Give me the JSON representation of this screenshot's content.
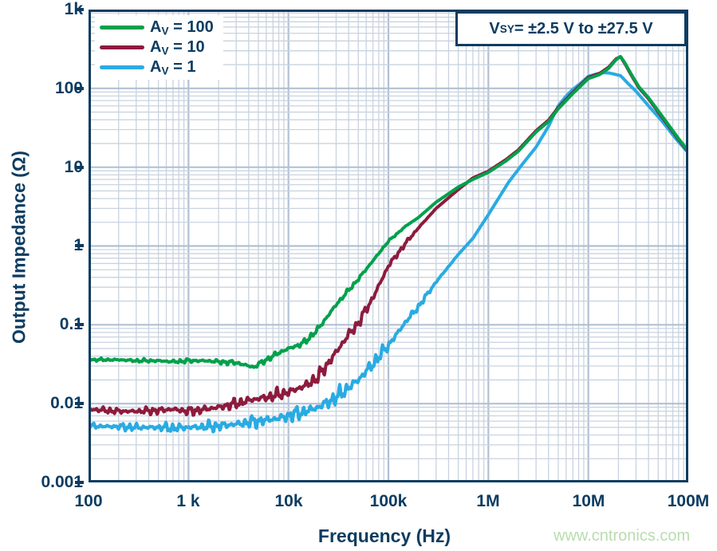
{
  "watermark": "www.cntronics.com",
  "chart_data": {
    "type": "line",
    "title": "",
    "xlabel": "Frequency (Hz)",
    "ylabel": "Output Impedance (Ω)",
    "x_scale": "log",
    "y_scale": "log",
    "xlim": [
      100,
      100000000
    ],
    "ylim": [
      0.001,
      1000
    ],
    "grid": "log minor + major gridlines, both axes",
    "legend_position": "top-left",
    "annotation": {
      "base": "V",
      "sub": "SY",
      "rest": " = ±2.5 V to ±27.5 V"
    },
    "xticks": [
      {
        "value": 100,
        "label": "100"
      },
      {
        "value": 1000,
        "label": "1 k"
      },
      {
        "value": 10000,
        "label": "10k"
      },
      {
        "value": 100000,
        "label": "100k"
      },
      {
        "value": 1000000,
        "label": "1M"
      },
      {
        "value": 10000000,
        "label": "10M"
      },
      {
        "value": 100000000,
        "label": "100M"
      }
    ],
    "yticks": [
      {
        "value": 1000,
        "label": "1k"
      },
      {
        "value": 100,
        "label": "100"
      },
      {
        "value": 10,
        "label": "10"
      },
      {
        "value": 1,
        "label": "1"
      },
      {
        "value": 0.1,
        "label": "0.1"
      },
      {
        "value": 0.01,
        "label": "0.01"
      },
      {
        "value": 0.001,
        "label": "0.001"
      }
    ],
    "colors": {
      "axis": "#0d3c61",
      "grid_minor": "#c9d3df",
      "grid_major": "#b2c0d2",
      "watermark": "#b9dcae"
    },
    "series": [
      {
        "name": "AV = 100",
        "legend": {
          "base": "A",
          "sub": "V",
          "rest": " = 100"
        },
        "color": "#00a14b",
        "noise": {
          "amp_log": 0.04,
          "fade_start_hz": 20000,
          "fade_end_hz": 200000,
          "seed": 5
        },
        "points": [
          [
            100,
            0.036
          ],
          [
            200,
            0.036
          ],
          [
            300,
            0.035
          ],
          [
            500,
            0.035
          ],
          [
            700,
            0.034
          ],
          [
            1000,
            0.035
          ],
          [
            1500,
            0.035
          ],
          [
            2000,
            0.034
          ],
          [
            3000,
            0.033
          ],
          [
            4500,
            0.029
          ],
          [
            6000,
            0.036
          ],
          [
            8000,
            0.044
          ],
          [
            10000,
            0.05
          ],
          [
            13000,
            0.056
          ],
          [
            15000,
            0.062
          ],
          [
            20000,
            0.09
          ],
          [
            30000,
            0.18
          ],
          [
            50000,
            0.38
          ],
          [
            70000,
            0.65
          ],
          [
            100000,
            1.15
          ],
          [
            150000,
            1.8
          ],
          [
            200000,
            2.3
          ],
          [
            300000,
            3.6
          ],
          [
            500000,
            5.6
          ],
          [
            700000,
            7.0
          ],
          [
            1000000,
            8.6
          ],
          [
            1500000,
            12
          ],
          [
            2000000,
            16
          ],
          [
            3000000,
            28
          ],
          [
            4000000,
            38
          ],
          [
            5000000,
            55
          ],
          [
            7000000,
            86
          ],
          [
            10000000,
            133
          ],
          [
            13000000,
            150
          ],
          [
            16000000,
            180
          ],
          [
            19000000,
            232
          ],
          [
            21000000,
            255
          ],
          [
            23500000,
            205
          ],
          [
            27000000,
            150
          ],
          [
            32000000,
            105
          ],
          [
            40000000,
            76
          ],
          [
            50000000,
            52
          ],
          [
            65000000,
            33
          ],
          [
            80000000,
            23
          ],
          [
            100000000,
            16
          ]
        ]
      },
      {
        "name": "AV = 10",
        "legend": {
          "base": "A",
          "sub": "V",
          "rest": " = 10"
        },
        "color": "#8d1b3d",
        "noise": {
          "amp_log": 0.085,
          "fade_start_hz": 30000,
          "fade_end_hz": 300000,
          "seed": 11
        },
        "points": [
          [
            100,
            0.0085
          ],
          [
            200,
            0.008
          ],
          [
            300,
            0.008
          ],
          [
            500,
            0.0082
          ],
          [
            700,
            0.0085
          ],
          [
            1000,
            0.008
          ],
          [
            1500,
            0.0085
          ],
          [
            2000,
            0.009
          ],
          [
            3000,
            0.01
          ],
          [
            4000,
            0.011
          ],
          [
            6000,
            0.012
          ],
          [
            8000,
            0.013
          ],
          [
            10000,
            0.014
          ],
          [
            15000,
            0.017
          ],
          [
            20000,
            0.022
          ],
          [
            30000,
            0.045
          ],
          [
            40000,
            0.075
          ],
          [
            50000,
            0.105
          ],
          [
            70000,
            0.22
          ],
          [
            100000,
            0.56
          ],
          [
            150000,
            1.1
          ],
          [
            200000,
            1.7
          ],
          [
            300000,
            3.0
          ],
          [
            500000,
            5.2
          ],
          [
            700000,
            7.3
          ],
          [
            1000000,
            8.9
          ],
          [
            1500000,
            12.5
          ],
          [
            2000000,
            16.6
          ],
          [
            3000000,
            29
          ],
          [
            4000000,
            39.5
          ],
          [
            5000000,
            57
          ],
          [
            7000000,
            89
          ],
          [
            10000000,
            138
          ],
          [
            13000000,
            155
          ],
          [
            16000000,
            186
          ],
          [
            19000000,
            238
          ],
          [
            21000000,
            252
          ],
          [
            23500000,
            200
          ],
          [
            27000000,
            146
          ],
          [
            32000000,
            102
          ],
          [
            40000000,
            74
          ],
          [
            50000000,
            50
          ],
          [
            65000000,
            32
          ],
          [
            80000000,
            22.4
          ],
          [
            100000000,
            15.6
          ]
        ]
      },
      {
        "name": "AV = 1",
        "legend": {
          "base": "A",
          "sub": "V",
          "rest": " = 1"
        },
        "color": "#29abe2",
        "noise": {
          "amp_log": 0.1,
          "fade_start_hz": 50000,
          "fade_end_hz": 500000,
          "seed": 23
        },
        "points": [
          [
            100,
            0.0052
          ],
          [
            200,
            0.0051
          ],
          [
            300,
            0.005
          ],
          [
            500,
            0.005
          ],
          [
            700,
            0.0049
          ],
          [
            1000,
            0.005
          ],
          [
            1500,
            0.0051
          ],
          [
            2000,
            0.0052
          ],
          [
            3000,
            0.0055
          ],
          [
            5000,
            0.006
          ],
          [
            8000,
            0.0065
          ],
          [
            10000,
            0.007
          ],
          [
            15000,
            0.008
          ],
          [
            20000,
            0.009
          ],
          [
            30000,
            0.012
          ],
          [
            50000,
            0.02
          ],
          [
            70000,
            0.032
          ],
          [
            100000,
            0.055
          ],
          [
            150000,
            0.11
          ],
          [
            200000,
            0.17
          ],
          [
            300000,
            0.35
          ],
          [
            500000,
            0.78
          ],
          [
            700000,
            1.25
          ],
          [
            1000000,
            2.5
          ],
          [
            1600000,
            6.5
          ],
          [
            2200000,
            11
          ],
          [
            3000000,
            18
          ],
          [
            4000000,
            33
          ],
          [
            5000000,
            60
          ],
          [
            6000000,
            80
          ],
          [
            7000000,
            97
          ],
          [
            8500000,
            118
          ],
          [
            10000000,
            142
          ],
          [
            12000000,
            152
          ],
          [
            14000000,
            158
          ],
          [
            16000000,
            157
          ],
          [
            18000000,
            152
          ],
          [
            21000000,
            145
          ],
          [
            25000000,
            115
          ],
          [
            30000000,
            92
          ],
          [
            40000000,
            60
          ],
          [
            55000000,
            38
          ],
          [
            75000000,
            23
          ],
          [
            100000000,
            15.2
          ]
        ]
      }
    ]
  }
}
